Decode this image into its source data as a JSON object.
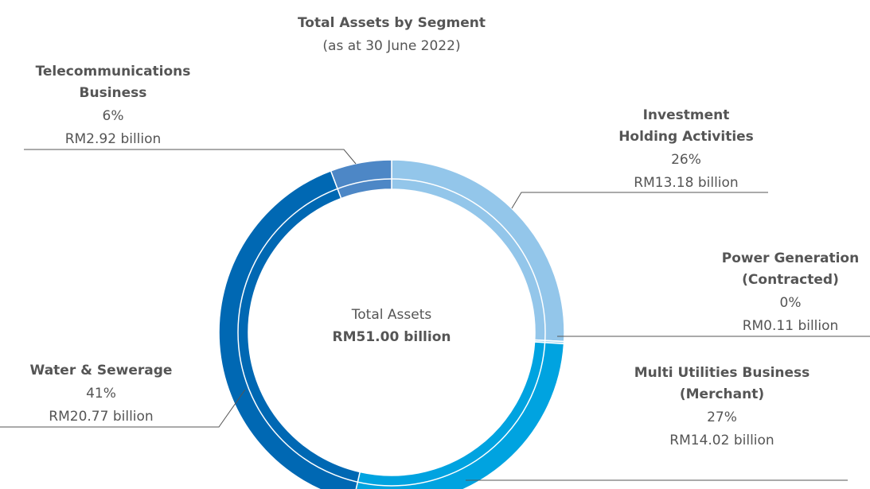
{
  "chart_data": {
    "type": "donut",
    "title": "Total Assets by Segment",
    "subtitle": "(as at 30 June 2022)",
    "center_label": "Total Assets",
    "center_value_label": "RM51.00 billion",
    "categories": [
      [
        "Investment",
        "Holding Activities"
      ],
      [
        "Power Generation",
        "(Contracted)"
      ],
      [
        "Multi Utilities Business",
        "(Merchant)"
      ],
      [
        "Water & Sewerage"
      ],
      [
        "Telecommunications",
        "Business"
      ]
    ],
    "values": [
      13.18,
      0.11,
      14.02,
      20.77,
      2.92
    ],
    "value_labels": [
      "RM13.18 billion",
      "RM0.11 billion",
      "RM14.02 billion",
      "RM20.77 billion",
      "RM2.92 billion"
    ],
    "percent_labels": [
      "26%",
      "0%",
      "27%",
      "41%",
      "6%"
    ],
    "colors": [
      "#93c6ea",
      "#a6d6f0",
      "#00a3e0",
      "#0068b3",
      "#4d87c6"
    ]
  }
}
